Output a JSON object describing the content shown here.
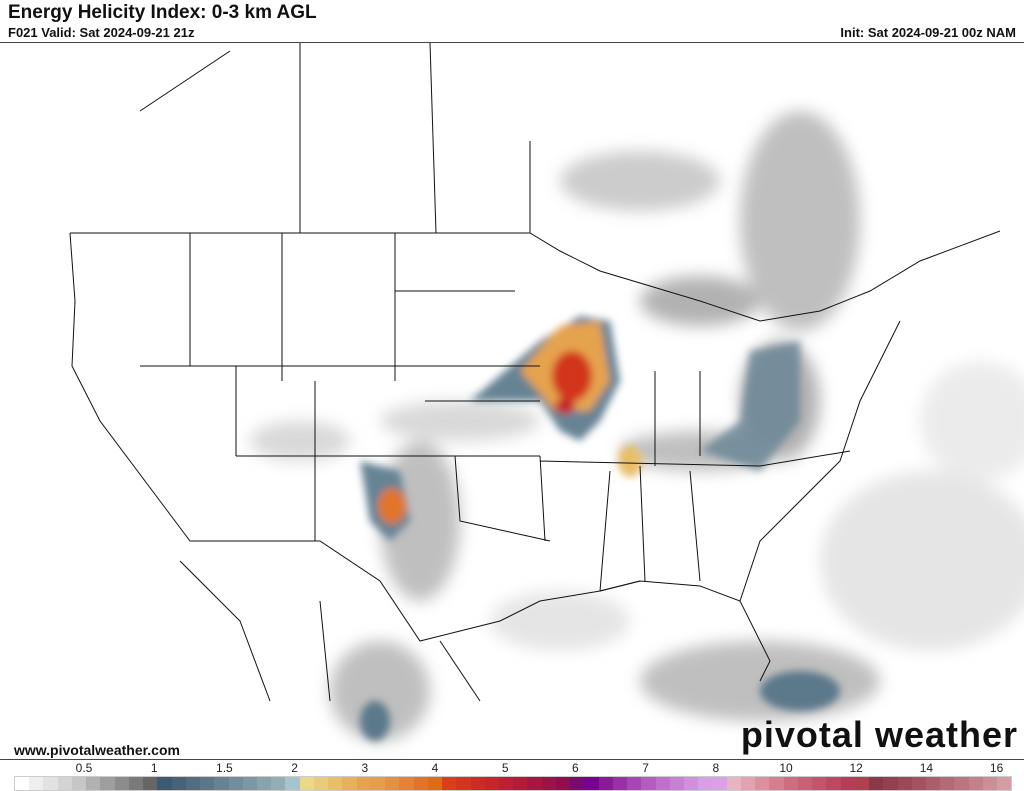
{
  "header": {
    "title": "Energy Helicity Index: 0-3 km AGL",
    "valid": "F021 Valid: Sat 2024-09-21 21z",
    "init": "Init: Sat 2024-09-21 00z NAM"
  },
  "footer": {
    "website": "www.pivotalweather.com",
    "watermark": "pivotal weather"
  },
  "colorbar": {
    "ticks": [
      "0.5",
      "1",
      "1.5",
      "2",
      "3",
      "4",
      "5",
      "6",
      "7",
      "8",
      "10",
      "12",
      "14",
      "16"
    ],
    "colors": [
      "#ffffff",
      "#efefef",
      "#e2e2e2",
      "#d4d4d4",
      "#c6c6c6",
      "#b1b1b1",
      "#9e9e9e",
      "#8c8c8c",
      "#7a7a7a",
      "#666666",
      "#3d5a73",
      "#466378",
      "#506d82",
      "#5b788b",
      "#668394",
      "#728e9c",
      "#7d98a5",
      "#89a3ae",
      "#95adb6",
      "#a3c6cd",
      "#ecd888",
      "#eacb79",
      "#e8be69",
      "#e7b05b",
      "#e6a34d",
      "#e69e48",
      "#e59040",
      "#e48236",
      "#e2742a",
      "#e06a16",
      "#d8401a",
      "#d2361f",
      "#cc2c25",
      "#c6252b",
      "#be1f33",
      "#b41b3a",
      "#a81640",
      "#9c1246",
      "#900e4c",
      "#7a0a70",
      "#7a0090",
      "#8a1a9a",
      "#9a30a8",
      "#a846b4",
      "#b45cc0",
      "#c070cc",
      "#c880d4",
      "#d090dc",
      "#d8a0e4",
      "#dba0e8",
      "#e8b4c0",
      "#e2a2b0",
      "#dc90a0",
      "#d67e90",
      "#d06c80",
      "#ca6076",
      "#c4546c",
      "#be4862",
      "#b83c58",
      "#b0404c",
      "#8c3848",
      "#944050",
      "#9c4858",
      "#a45262",
      "#ac5c6c",
      "#b46878",
      "#bc7482",
      "#c4808c",
      "#cc8e98",
      "#d49ca4"
    ]
  }
}
